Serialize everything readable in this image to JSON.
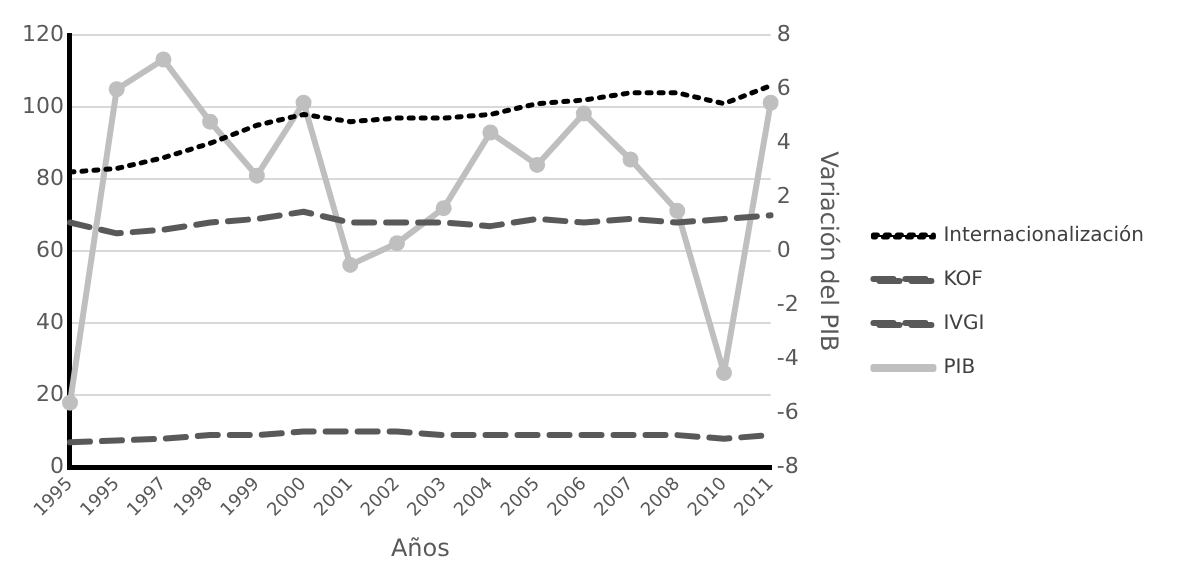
{
  "chart_data": {
    "type": "line",
    "xlabel": "Años",
    "y2label": "Variación del PIB",
    "categories": [
      "1995",
      "1995",
      "1997",
      "1998",
      "1999",
      "2000",
      "2001",
      "2002",
      "2003",
      "2004",
      "2005",
      "2006",
      "2007",
      "2008",
      "2010",
      "2011"
    ],
    "series": [
      {
        "name": "Internacionalización",
        "color": "#000000",
        "line_style": "dotted",
        "marker": "none",
        "values": [
          82,
          83,
          86,
          90,
          95,
          98,
          96,
          97,
          97,
          98,
          101,
          102,
          104,
          104,
          101,
          106
        ]
      },
      {
        "name": "KOF",
        "color": "#595959",
        "line_style": "dashed",
        "marker": "none",
        "values": [
          68,
          65,
          66,
          68,
          69,
          71,
          68,
          68,
          68,
          67,
          69,
          68,
          69,
          68,
          69,
          70
        ]
      },
      {
        "name": "IVGI",
        "color": "#595959",
        "line_style": "dashed",
        "marker": "none",
        "values": [
          7,
          7.5,
          8,
          9,
          9,
          10,
          10,
          10,
          9,
          9,
          9,
          9,
          9,
          9,
          8,
          9
        ]
      },
      {
        "name": "PIB",
        "color": "#bfbfbf",
        "line_style": "solid",
        "marker": "circle",
        "axis": "y2",
        "values": [
          -5.6,
          6.0,
          7.1,
          4.8,
          2.8,
          5.5,
          -0.5,
          0.3,
          1.6,
          4.4,
          3.2,
          5.1,
          3.4,
          1.5,
          -4.5,
          5.5
        ]
      }
    ],
    "ylim": [
      0,
      120
    ],
    "yticks": [
      0,
      20,
      40,
      60,
      80,
      100,
      120
    ],
    "y2lim": [
      -8,
      8
    ],
    "y2ticks": [
      -8,
      -6,
      -4,
      -2,
      0,
      2,
      4,
      6,
      8
    ],
    "grid": "y",
    "legend": "right"
  }
}
